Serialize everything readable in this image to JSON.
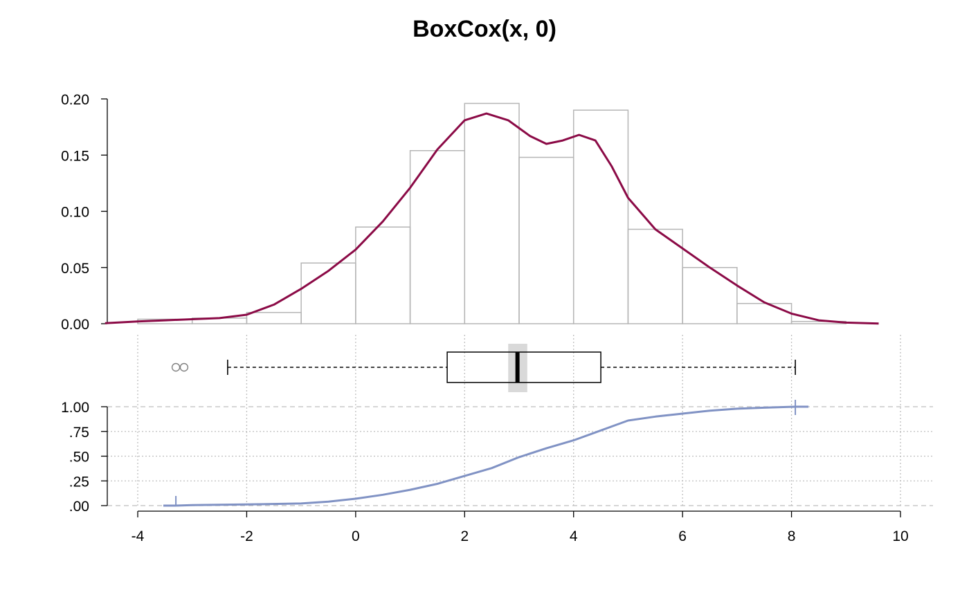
{
  "title": "BoxCox(x, 0)",
  "colors": {
    "density": "#8B0A46",
    "histogram": "#B5B5B5",
    "ecdf": "#8092C4",
    "outlier": "#808080",
    "median_ci": "#D9D9D9",
    "grid": "#BEBEBE"
  },
  "chart_data": [
    {
      "type": "histogram",
      "panel": "density",
      "title": "BoxCox(x, 0)",
      "ylim": [
        0,
        0.2
      ],
      "y_ticks": [
        0,
        0.05,
        0.1,
        0.15,
        0.2
      ],
      "y_tick_labels": [
        "0.00",
        "0.05",
        "0.10",
        "0.15",
        "0.20"
      ],
      "bins": [
        {
          "from": -4,
          "to": -3,
          "density": 0.004
        },
        {
          "from": -3,
          "to": -2,
          "density": 0.005
        },
        {
          "from": -2,
          "to": -1,
          "density": 0.01
        },
        {
          "from": -1,
          "to": 0,
          "density": 0.054
        },
        {
          "from": 0,
          "to": 1,
          "density": 0.086
        },
        {
          "from": 1,
          "to": 2,
          "density": 0.154
        },
        {
          "from": 2,
          "to": 3,
          "density": 0.196
        },
        {
          "from": 3,
          "to": 4,
          "density": 0.148
        },
        {
          "from": 4,
          "to": 5,
          "density": 0.19
        },
        {
          "from": 5,
          "to": 6,
          "density": 0.084
        },
        {
          "from": 6,
          "to": 7,
          "density": 0.05
        },
        {
          "from": 7,
          "to": 8,
          "density": 0.018
        },
        {
          "from": 8,
          "to": 9,
          "density": 0.002
        }
      ],
      "density_curve": {
        "x": [
          -4.6,
          -4.0,
          -3.5,
          -3.0,
          -2.5,
          -2.0,
          -1.5,
          -1.0,
          -0.5,
          0.0,
          0.5,
          1.0,
          1.5,
          2.0,
          2.4,
          2.8,
          3.2,
          3.5,
          3.8,
          4.1,
          4.4,
          4.7,
          5.0,
          5.5,
          6.0,
          6.5,
          7.0,
          7.5,
          8.0,
          8.5,
          9.0,
          9.6
        ],
        "y": [
          0.0005,
          0.002,
          0.003,
          0.004,
          0.005,
          0.008,
          0.017,
          0.031,
          0.047,
          0.066,
          0.091,
          0.121,
          0.155,
          0.181,
          0.187,
          0.181,
          0.167,
          0.16,
          0.163,
          0.168,
          0.163,
          0.14,
          0.112,
          0.084,
          0.067,
          0.05,
          0.034,
          0.019,
          0.009,
          0.003,
          0.001,
          0.0002
        ]
      }
    },
    {
      "type": "boxplot",
      "panel": "box",
      "whisker_low": -2.35,
      "q1": 1.68,
      "median": 2.97,
      "q3": 4.5,
      "whisker_high": 8.07,
      "median_ci": [
        2.8,
        3.15
      ],
      "outliers": [
        -3.3,
        -3.15
      ]
    },
    {
      "type": "line",
      "panel": "ecdf",
      "ylim": [
        0,
        1
      ],
      "y_ticks": [
        0,
        0.25,
        0.5,
        0.75,
        1
      ],
      "y_tick_labels": [
        ".00",
        ".25",
        ".50",
        ".75",
        "1.00"
      ],
      "x": [
        -3.3,
        -3.0,
        -2.0,
        -1.0,
        -0.5,
        0.0,
        0.5,
        1.0,
        1.5,
        2.0,
        2.5,
        3.0,
        3.5,
        4.0,
        4.5,
        5.0,
        5.5,
        6.0,
        6.5,
        7.0,
        7.5,
        8.07
      ],
      "y": [
        0.0,
        0.005,
        0.012,
        0.022,
        0.04,
        0.07,
        0.11,
        0.16,
        0.22,
        0.3,
        0.38,
        0.49,
        0.58,
        0.66,
        0.76,
        0.86,
        0.9,
        0.93,
        0.96,
        0.98,
        0.99,
        1.0
      ],
      "xlim": [
        -4.6,
        10.6
      ],
      "x_ticks": [
        -4,
        -2,
        0,
        2,
        4,
        6,
        8,
        10
      ],
      "x_tick_labels": [
        "-4",
        "-2",
        "0",
        "2",
        "4",
        "6",
        "8",
        "10"
      ]
    }
  ]
}
